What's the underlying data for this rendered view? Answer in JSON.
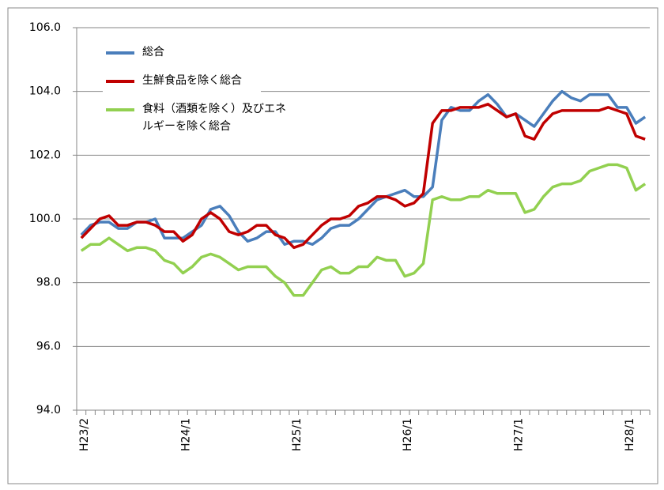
{
  "chart_data": {
    "type": "line",
    "categories": [
      "H23/2",
      null,
      null,
      null,
      null,
      null,
      null,
      null,
      null,
      null,
      null,
      "H24/1",
      null,
      null,
      null,
      null,
      null,
      null,
      null,
      null,
      null,
      null,
      null,
      "H25/1",
      null,
      null,
      null,
      null,
      null,
      null,
      null,
      null,
      null,
      null,
      null,
      "H26/1",
      null,
      null,
      null,
      null,
      null,
      null,
      null,
      null,
      null,
      null,
      null,
      "H27/1",
      null,
      null,
      null,
      null,
      null,
      null,
      null,
      null,
      null,
      null,
      null,
      "H28/1",
      null,
      null
    ],
    "series": [
      {
        "name": "総合",
        "color": "#4a7ebb",
        "values": [
          99.5,
          99.8,
          99.9,
          99.9,
          99.7,
          99.7,
          99.9,
          99.9,
          100.0,
          99.4,
          99.4,
          99.4,
          99.6,
          99.8,
          100.3,
          100.4,
          100.1,
          99.6,
          99.3,
          99.4,
          99.6,
          99.6,
          99.2,
          99.3,
          99.3,
          99.2,
          99.4,
          99.7,
          99.8,
          99.8,
          100.0,
          100.3,
          100.6,
          100.7,
          100.8,
          100.9,
          100.7,
          100.7,
          101.0,
          103.1,
          103.5,
          103.4,
          103.4,
          103.7,
          103.9,
          103.6,
          103.2,
          103.3,
          103.1,
          102.9,
          103.3,
          103.7,
          104.0,
          103.8,
          103.7,
          103.9,
          103.9,
          103.9,
          103.5,
          103.5,
          103.0,
          103.2
        ]
      },
      {
        "name": "生鮮食品を除く総合",
        "color": "#c00000",
        "values": [
          99.4,
          99.7,
          100.0,
          100.1,
          99.8,
          99.8,
          99.9,
          99.9,
          99.8,
          99.6,
          99.6,
          99.3,
          99.5,
          100.0,
          100.2,
          100.0,
          99.6,
          99.5,
          99.6,
          99.8,
          99.8,
          99.5,
          99.4,
          99.1,
          99.2,
          99.5,
          99.8,
          100.0,
          100.0,
          100.1,
          100.4,
          100.5,
          100.7,
          100.7,
          100.6,
          100.4,
          100.5,
          100.8,
          103.0,
          103.4,
          103.4,
          103.5,
          103.5,
          103.5,
          103.6,
          103.4,
          103.2,
          103.3,
          102.6,
          102.5,
          103.0,
          103.3,
          103.4,
          103.4,
          103.4,
          103.4,
          103.4,
          103.5,
          103.4,
          103.3,
          102.6,
          102.5
        ]
      },
      {
        "name": "食料（酒類を除く）及びエネルギーを除く総合",
        "color": "#92d050",
        "values": [
          99.0,
          99.2,
          99.2,
          99.4,
          99.2,
          99.0,
          99.1,
          99.1,
          99.0,
          98.7,
          98.6,
          98.3,
          98.5,
          98.8,
          98.9,
          98.8,
          98.6,
          98.4,
          98.5,
          98.5,
          98.5,
          98.2,
          98.0,
          97.6,
          97.6,
          98.0,
          98.4,
          98.5,
          98.3,
          98.3,
          98.5,
          98.5,
          98.8,
          98.7,
          98.7,
          98.2,
          98.3,
          98.6,
          100.6,
          100.7,
          100.6,
          100.6,
          100.7,
          100.7,
          100.9,
          100.8,
          100.8,
          100.8,
          100.2,
          100.3,
          100.7,
          101.0,
          101.1,
          101.1,
          101.2,
          101.5,
          101.6,
          101.7,
          101.7,
          101.6,
          100.9,
          101.1
        ]
      }
    ],
    "ylim": [
      94,
      106
    ],
    "yticks": [
      {
        "value": 94,
        "label": "94.0"
      },
      {
        "value": 96,
        "label": "96.0"
      },
      {
        "value": 98,
        "label": "98.0"
      },
      {
        "value": 100,
        "label": "100.0"
      },
      {
        "value": 102,
        "label": "102.0"
      },
      {
        "value": 104,
        "label": "104.0"
      },
      {
        "value": 106,
        "label": "106.0"
      }
    ],
    "grid": true
  }
}
